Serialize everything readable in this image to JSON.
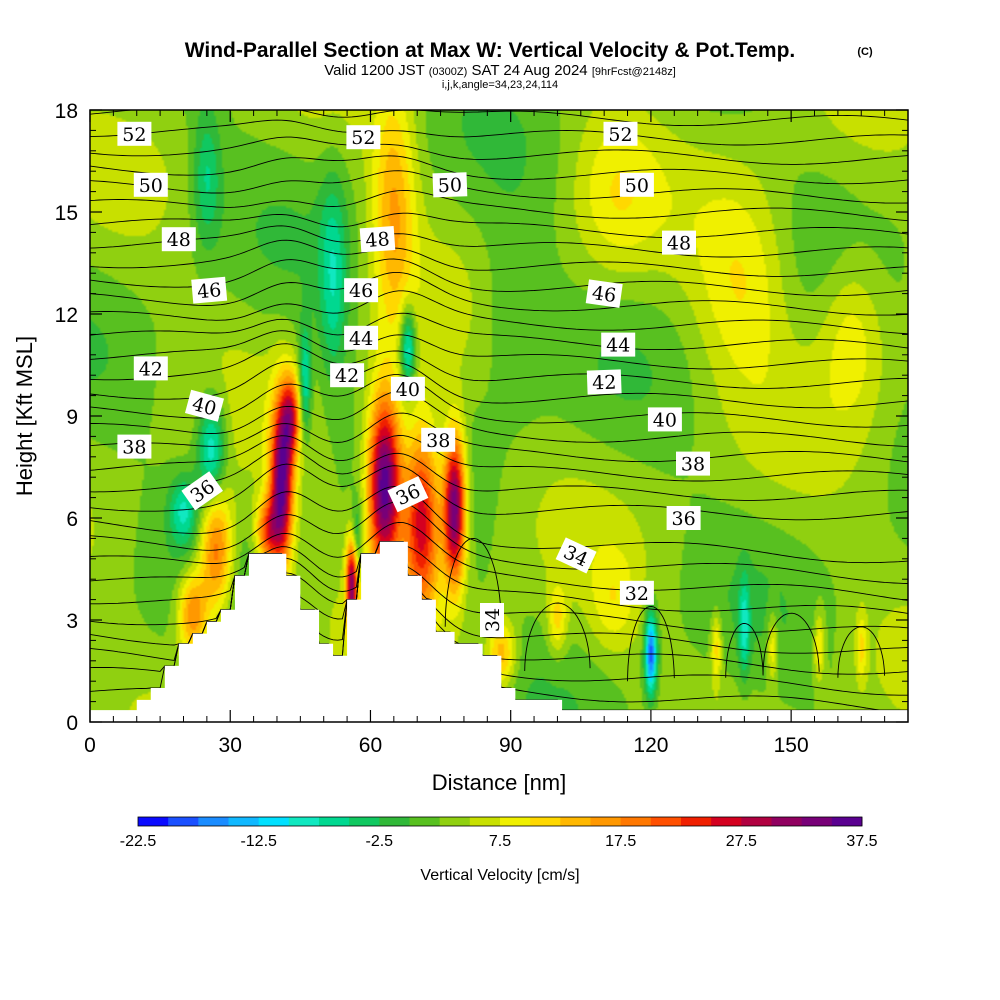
{
  "chart_data": {
    "type": "heatmap",
    "title": {
      "main": "Wind-Parallel Section at Max W: Vertical Velocity & Pot.Temp.",
      "main_units": "(C)",
      "valid_a": "Valid 1200 JST",
      "valid_b": "(0300Z)",
      "valid_c": "SAT 24 Aug 2024",
      "valid_d": "[9hrFcst@2148z]",
      "grid_info": "i,j,k,angle=34,23,24,114"
    },
    "xlabel": "Distance [nm]",
    "ylabel": "Height [Kft MSL]",
    "xlim": [
      0,
      175
    ],
    "ylim": [
      0,
      18
    ],
    "x_ticks": [
      "0",
      "30",
      "60",
      "90",
      "120",
      "150"
    ],
    "x_tick_values": [
      0,
      30,
      60,
      90,
      120,
      150
    ],
    "y_ticks": [
      "0",
      "3",
      "6",
      "9",
      "12",
      "15",
      "18"
    ],
    "y_tick_values": [
      0,
      3,
      6,
      9,
      12,
      15,
      18
    ],
    "colorbar": {
      "label": "Vertical Velocity [cm/s]",
      "min": -22.5,
      "max": 37.5,
      "step": 2.5,
      "tick_labels": [
        "-22.5",
        "-12.5",
        "-2.5",
        "7.5",
        "17.5",
        "27.5",
        "37.5"
      ],
      "tick_values": [
        -22.5,
        -12.5,
        -2.5,
        7.5,
        17.5,
        27.5,
        37.5
      ],
      "colors": [
        "#0a0aff",
        "#1a50ff",
        "#1a8cff",
        "#10b8ff",
        "#00e0ff",
        "#10e8c0",
        "#00d890",
        "#10c860",
        "#30b838",
        "#58c020",
        "#90d010",
        "#c8e000",
        "#f0f000",
        "#ffd800",
        "#ffb800",
        "#ff9800",
        "#ff7800",
        "#ff5000",
        "#f02000",
        "#d40020",
        "#b00040",
        "#900060",
        "#780078",
        "#5a0090"
      ]
    },
    "series_desc_none": "",
    "terrain": [
      {
        "x": 0,
        "h": 0.35
      },
      {
        "x": 10,
        "h": 0.35
      },
      {
        "x": 10,
        "h": 0.65
      },
      {
        "x": 13,
        "h": 0.65
      },
      {
        "x": 13,
        "h": 1.0
      },
      {
        "x": 16,
        "h": 1.0
      },
      {
        "x": 16,
        "h": 1.65
      },
      {
        "x": 19,
        "h": 1.65
      },
      {
        "x": 19,
        "h": 2.3
      },
      {
        "x": 22,
        "h": 2.3
      },
      {
        "x": 22,
        "h": 2.6
      },
      {
        "x": 25,
        "h": 2.6
      },
      {
        "x": 25,
        "h": 2.95
      },
      {
        "x": 28,
        "h": 2.95
      },
      {
        "x": 28,
        "h": 3.3
      },
      {
        "x": 31,
        "h": 3.3
      },
      {
        "x": 31,
        "h": 4.3
      },
      {
        "x": 34,
        "h": 4.3
      },
      {
        "x": 34,
        "h": 4.95
      },
      {
        "x": 42,
        "h": 4.95
      },
      {
        "x": 42,
        "h": 4.3
      },
      {
        "x": 45,
        "h": 4.3
      },
      {
        "x": 45,
        "h": 3.3
      },
      {
        "x": 49,
        "h": 3.3
      },
      {
        "x": 49,
        "h": 2.3
      },
      {
        "x": 52,
        "h": 2.3
      },
      {
        "x": 52,
        "h": 1.95
      },
      {
        "x": 55,
        "h": 1.95
      },
      {
        "x": 55,
        "h": 3.6
      },
      {
        "x": 58,
        "h": 3.6
      },
      {
        "x": 58,
        "h": 4.95
      },
      {
        "x": 62,
        "h": 4.95
      },
      {
        "x": 62,
        "h": 5.3
      },
      {
        "x": 68,
        "h": 5.3
      },
      {
        "x": 68,
        "h": 4.3
      },
      {
        "x": 71,
        "h": 4.3
      },
      {
        "x": 71,
        "h": 3.6
      },
      {
        "x": 74,
        "h": 3.6
      },
      {
        "x": 74,
        "h": 2.65
      },
      {
        "x": 78,
        "h": 2.65
      },
      {
        "x": 78,
        "h": 2.3
      },
      {
        "x": 84,
        "h": 2.3
      },
      {
        "x": 84,
        "h": 1.95
      },
      {
        "x": 88,
        "h": 1.95
      },
      {
        "x": 88,
        "h": 1.0
      },
      {
        "x": 91,
        "h": 1.0
      },
      {
        "x": 91,
        "h": 0.65
      },
      {
        "x": 101,
        "h": 0.65
      },
      {
        "x": 101,
        "h": 0.35
      },
      {
        "x": 175,
        "h": 0.35
      }
    ],
    "w_features": [
      {
        "x": 27,
        "y": 5.0,
        "sx": 3.5,
        "sy": 1.8,
        "w": 18
      },
      {
        "x": 22,
        "y": 3.2,
        "sx": 3.2,
        "sy": 1.2,
        "w": 16
      },
      {
        "x": 41,
        "y": 7.0,
        "sx": 2.4,
        "sy": 2.4,
        "w": 32
      },
      {
        "x": 38,
        "y": 5.6,
        "sx": 2.5,
        "sy": 1.0,
        "w": 18
      },
      {
        "x": 43,
        "y": 9.0,
        "sx": 2.0,
        "sy": 1.2,
        "w": 18
      },
      {
        "x": 56,
        "y": 4.0,
        "sx": 1.2,
        "sy": 1.4,
        "w": 28
      },
      {
        "x": 63,
        "y": 7.0,
        "sx": 3.5,
        "sy": 2.6,
        "w": 36
      },
      {
        "x": 71,
        "y": 6.0,
        "sx": 4.0,
        "sy": 2.8,
        "w": 26
      },
      {
        "x": 78,
        "y": 6.3,
        "sx": 2.3,
        "sy": 2.2,
        "w": 33
      },
      {
        "x": 65,
        "y": 15.0,
        "sx": 4.5,
        "sy": 3.5,
        "w": 12
      },
      {
        "x": 88,
        "y": 2.0,
        "sx": 3.0,
        "sy": 1.0,
        "w": 12
      },
      {
        "x": 26,
        "y": 8.0,
        "sx": 3.0,
        "sy": 1.5,
        "w": -14
      },
      {
        "x": 20,
        "y": 6.2,
        "sx": 3.0,
        "sy": 1.0,
        "w": -10
      },
      {
        "x": 46,
        "y": 10.0,
        "sx": 1.3,
        "sy": 1.6,
        "w": -12
      },
      {
        "x": 68,
        "y": 11.0,
        "sx": 1.6,
        "sy": 1.2,
        "w": -15
      },
      {
        "x": 57,
        "y": 5.5,
        "sx": 1.2,
        "sy": 1.0,
        "w": -8
      },
      {
        "x": 120,
        "y": 2.0,
        "sx": 1.3,
        "sy": 1.2,
        "w": -22
      },
      {
        "x": 140,
        "y": 2.8,
        "sx": 1.2,
        "sy": 1.4,
        "w": -10
      },
      {
        "x": 25,
        "y": 16.0,
        "sx": 3.0,
        "sy": 2.0,
        "w": -8
      },
      {
        "x": 52,
        "y": 13.0,
        "sx": 3.0,
        "sy": 3.0,
        "w": -9
      },
      {
        "x": 90,
        "y": 12.0,
        "sx": 8.0,
        "sy": 3.0,
        "w": -4
      },
      {
        "x": 140,
        "y": 13.0,
        "sx": 10.0,
        "sy": 3.0,
        "w": 7
      },
      {
        "x": 163,
        "y": 11.5,
        "sx": 7.0,
        "sy": 2.5,
        "w": 7
      },
      {
        "x": 112,
        "y": 15.5,
        "sx": 9.0,
        "sy": 2.5,
        "w": 5
      },
      {
        "x": 100,
        "y": 3.0,
        "sx": 2.0,
        "sy": 1.0,
        "w": 8
      },
      {
        "x": 112,
        "y": 3.5,
        "sx": 5.0,
        "sy": 1.5,
        "w": 5
      },
      {
        "x": 134,
        "y": 2.2,
        "sx": 1.1,
        "sy": 1.0,
        "w": 9
      },
      {
        "x": 146,
        "y": 2.2,
        "sx": 1.1,
        "sy": 1.0,
        "w": 8
      },
      {
        "x": 156,
        "y": 2.2,
        "sx": 1.1,
        "sy": 1.0,
        "w": 8
      },
      {
        "x": 165,
        "y": 2.2,
        "sx": 1.1,
        "sy": 1.0,
        "w": 7
      }
    ],
    "theta_labels": [
      {
        "text": "52",
        "x": 9.5,
        "y": 17.3,
        "a": 0
      },
      {
        "text": "52",
        "x": 58.5,
        "y": 17.2,
        "a": 0
      },
      {
        "text": "52",
        "x": 113.5,
        "y": 17.3,
        "a": 0
      },
      {
        "text": "50",
        "x": 13,
        "y": 15.8,
        "a": 0
      },
      {
        "text": "50",
        "x": 77,
        "y": 15.8,
        "a": -2
      },
      {
        "text": "50",
        "x": 117,
        "y": 15.8,
        "a": 0
      },
      {
        "text": "48",
        "x": 19,
        "y": 14.2,
        "a": 0
      },
      {
        "text": "48",
        "x": 61.5,
        "y": 14.2,
        "a": -4
      },
      {
        "text": "48",
        "x": 126,
        "y": 14.1,
        "a": 0
      },
      {
        "text": "46",
        "x": 25.5,
        "y": 12.7,
        "a": -5
      },
      {
        "text": "46",
        "x": 58,
        "y": 12.7,
        "a": 0
      },
      {
        "text": "46",
        "x": 110,
        "y": 12.6,
        "a": 8
      },
      {
        "text": "44",
        "x": 58,
        "y": 11.3,
        "a": 0
      },
      {
        "text": "44",
        "x": 113,
        "y": 11.1,
        "a": 0
      },
      {
        "text": "42",
        "x": 13,
        "y": 10.4,
        "a": 0
      },
      {
        "text": "42",
        "x": 55,
        "y": 10.2,
        "a": 0
      },
      {
        "text": "42",
        "x": 110,
        "y": 10.0,
        "a": -2
      },
      {
        "text": "40",
        "x": 24.5,
        "y": 9.3,
        "a": 15
      },
      {
        "text": "40",
        "x": 68,
        "y": 9.8,
        "a": 0
      },
      {
        "text": "40",
        "x": 123,
        "y": 8.9,
        "a": 0
      },
      {
        "text": "38",
        "x": 9.5,
        "y": 8.1,
        "a": 0
      },
      {
        "text": "38",
        "x": 74.5,
        "y": 8.3,
        "a": 0
      },
      {
        "text": "38",
        "x": 129,
        "y": 7.6,
        "a": 0
      },
      {
        "text": "36",
        "x": 24,
        "y": 6.8,
        "a": -35
      },
      {
        "text": "36",
        "x": 68,
        "y": 6.7,
        "a": -25
      },
      {
        "text": "36",
        "x": 127,
        "y": 6.0,
        "a": 0
      },
      {
        "text": "34",
        "x": 104,
        "y": 4.9,
        "a": 25
      },
      {
        "text": "34",
        "x": 86,
        "y": 3.0,
        "a": -90
      },
      {
        "text": "32",
        "x": 117,
        "y": 3.8,
        "a": 0
      }
    ]
  }
}
